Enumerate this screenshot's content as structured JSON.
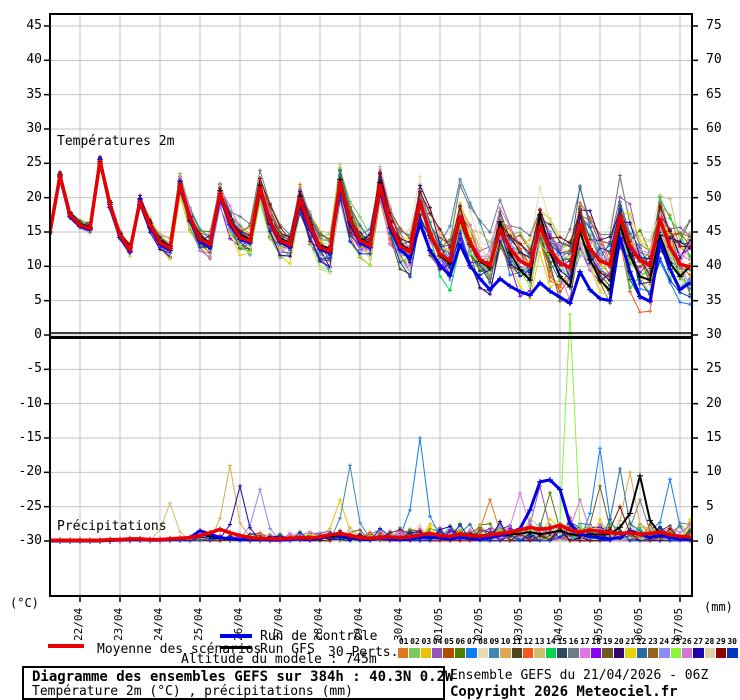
{
  "panel_labels": {
    "temp": "Températures 2m",
    "precip": "Précipitations"
  },
  "axes": {
    "left_unit": "(°C)",
    "right_unit": "(mm)",
    "left_ticks": [
      45,
      40,
      35,
      30,
      25,
      20,
      15,
      10,
      5,
      0,
      -5,
      -10,
      -15,
      -20,
      -25,
      -30
    ],
    "right_ticks": [
      75,
      70,
      65,
      60,
      55,
      50,
      45,
      40,
      35,
      30,
      25,
      20,
      15,
      10,
      5,
      0
    ],
    "dates": [
      "22/04",
      "23/04",
      "24/04",
      "25/04",
      "26/04",
      "27/04",
      "28/04",
      "29/04",
      "30/04",
      "01/05",
      "02/05",
      "03/05",
      "04/05",
      "05/05",
      "06/05",
      "07/05"
    ]
  },
  "legend": {
    "mean_label": "Moyenne des scénarios",
    "control_label": "Run de contrôle",
    "gfs_label": "Run GFS",
    "perts_label": "30 Perts.",
    "mean_color": "#e80000",
    "control_color": "#0000e8",
    "gfs_color": "#000000"
  },
  "altitude_note": "Altitude du modele : 745m",
  "title_box": {
    "line1": "Diagramme des ensembles GEFS sur 384h : 40.3N 0.2W",
    "line2": "Température 2m (°C) , précipitations (mm)"
  },
  "footer_right": {
    "line1": "Ensemble GEFS du 21/04/2026 - 06Z",
    "line2": "Copyright 2026 Meteociel.fr"
  },
  "members": {
    "numbers": [
      "01",
      "02",
      "03",
      "04",
      "05",
      "06",
      "07",
      "08",
      "09",
      "10",
      "11",
      "12",
      "13",
      "14",
      "15",
      "16",
      "17",
      "18",
      "19",
      "20",
      "21",
      "22",
      "23",
      "24",
      "25",
      "26",
      "27",
      "28",
      "29",
      "30"
    ],
    "colors": [
      "#e07820",
      "#7cc85c",
      "#e8c400",
      "#9355bc",
      "#b44a00",
      "#4e7e00",
      "#0f7cf4",
      "#e8dcb4",
      "#3c88b4",
      "#dca853",
      "#50461e",
      "#f4591c",
      "#cbc070",
      "#04d44c",
      "#2c4a5c",
      "#6c7c84",
      "#e474e4",
      "#8804f4",
      "#6c5c24",
      "#34086c",
      "#e4d404",
      "#2c6c9c",
      "#94641c",
      "#8c8cf4",
      "#8cf43c",
      "#d474d4",
      "#1c04ac",
      "#dcd0a4",
      "#8c0404",
      "#0434c4"
    ]
  },
  "chart_data": {
    "type": "line",
    "title": "Diagramme des ensembles GEFS sur 384h : 40.3N 0.2W",
    "run_start": "21/04/2026 06Z",
    "step_hours": 6,
    "n_points": 65,
    "grid": true,
    "legend_position": "bottom",
    "temp_axis": {
      "label": "(°C)",
      "tick_range": [
        -30,
        45
      ],
      "tick_step": 5
    },
    "precip_axis": {
      "label": "(mm)",
      "tick_range": [
        0,
        75
      ],
      "tick_step": 5,
      "zero_at_temp": -30
    },
    "x_tick_dates": [
      "22/04",
      "23/04",
      "24/04",
      "25/04",
      "26/04",
      "27/04",
      "28/04",
      "29/04",
      "30/04",
      "01/05",
      "02/05",
      "03/05",
      "04/05",
      "05/05",
      "06/05",
      "07/05"
    ],
    "series": {
      "mean_temp": [
        15.0,
        23.2,
        17.5,
        16.0,
        15.5,
        25.3,
        19.0,
        14.5,
        12.4,
        19.4,
        16.0,
        13.5,
        12.6,
        22.0,
        17.0,
        14.0,
        13.2,
        20.6,
        16.5,
        14.2,
        13.7,
        21.4,
        16.5,
        13.8,
        13.1,
        19.8,
        15.8,
        12.8,
        12.2,
        22.2,
        16.8,
        13.8,
        13.0,
        21.8,
        16.2,
        13.0,
        12.1,
        19.4,
        14.8,
        11.8,
        10.8,
        17.2,
        13.5,
        11.0,
        10.1,
        15.4,
        12.6,
        10.8,
        10.0,
        15.8,
        12.4,
        10.5,
        9.8,
        16.1,
        12.6,
        10.8,
        10.2,
        17.3,
        13.0,
        10.9,
        10.1,
        16.8,
        12.8,
        10.3,
        9.9
      ],
      "control_temp": [
        15.0,
        23.0,
        17.2,
        15.8,
        15.3,
        25.6,
        18.6,
        14.2,
        12.1,
        19.8,
        15.7,
        13.2,
        12.3,
        22.4,
        16.6,
        13.7,
        12.9,
        20.2,
        16.1,
        13.9,
        13.4,
        21.0,
        16.2,
        13.5,
        12.8,
        19.4,
        15.4,
        12.5,
        11.9,
        21.8,
        16.4,
        13.4,
        12.7,
        21.2,
        15.6,
        12.4,
        11.2,
        16.2,
        12.3,
        10.2,
        8.6,
        13.2,
        10.1,
        8.2,
        6.6,
        8.2,
        7.1,
        6.3,
        5.8,
        7.6,
        6.4,
        5.5,
        4.6,
        9.2,
        6.6,
        5.3,
        5.0,
        14.2,
        9.2,
        5.6,
        4.9,
        13.5,
        9.6,
        6.6,
        7.6
      ],
      "gfs_temp": [
        15.0,
        23.4,
        17.8,
        16.2,
        15.7,
        25.0,
        19.3,
        14.8,
        12.7,
        19.0,
        16.3,
        13.8,
        12.9,
        21.6,
        17.3,
        14.3,
        13.5,
        21.0,
        16.8,
        14.5,
        14.0,
        21.8,
        16.8,
        14.1,
        13.4,
        20.2,
        16.1,
        13.1,
        12.5,
        22.6,
        17.1,
        14.1,
        13.3,
        22.2,
        16.5,
        13.3,
        12.4,
        19.0,
        14.5,
        11.5,
        10.5,
        16.8,
        13.2,
        10.7,
        9.8,
        16.5,
        12.0,
        9.5,
        8.0,
        17.5,
        12.0,
        8.5,
        7.0,
        15.0,
        11.0,
        8.0,
        6.5,
        16.0,
        11.5,
        8.5,
        8.0,
        14.5,
        10.5,
        8.5,
        10.0
      ],
      "member_spread_temp": [
        0.3,
        0.3,
        0.3,
        0.4,
        0.5,
        0.5,
        0.6,
        0.7,
        0.8,
        0.8,
        0.9,
        1.0,
        1.0,
        1.1,
        1.2,
        1.3,
        1.3,
        1.4,
        1.5,
        1.5,
        1.6,
        1.6,
        1.7,
        1.7,
        1.8,
        1.8,
        1.9,
        1.9,
        2.0,
        2.0,
        2.1,
        2.1,
        2.2,
        2.2,
        2.3,
        2.4,
        2.5,
        2.5,
        2.6,
        2.7,
        2.8,
        2.8,
        2.9,
        3.0,
        3.1,
        3.1,
        3.2,
        3.3,
        3.4,
        3.4,
        3.5,
        3.6,
        3.7,
        3.7,
        3.8,
        3.9,
        4.0,
        4.0,
        4.1,
        4.1,
        4.2,
        4.2,
        4.3,
        4.3,
        4.4
      ],
      "mean_precip": [
        0.1,
        0.1,
        0.1,
        0.1,
        0.1,
        0.1,
        0.2,
        0.2,
        0.3,
        0.3,
        0.2,
        0.2,
        0.3,
        0.4,
        0.5,
        0.8,
        1.2,
        1.7,
        1.2,
        0.8,
        0.5,
        0.4,
        0.3,
        0.3,
        0.4,
        0.5,
        0.4,
        0.6,
        0.9,
        1.1,
        0.8,
        0.5,
        0.4,
        0.5,
        0.6,
        0.5,
        0.6,
        0.9,
        1.1,
        0.8,
        0.7,
        1.0,
        0.8,
        0.7,
        0.9,
        1.1,
        1.3,
        1.6,
        2.0,
        1.7,
        1.9,
        2.3,
        1.6,
        1.3,
        1.6,
        1.4,
        1.2,
        1.1,
        1.2,
        1.0,
        1.1,
        1.3,
        0.9,
        0.7,
        0.6
      ],
      "control_precip": [
        0,
        0,
        0,
        0,
        0,
        0,
        0.1,
        0.1,
        0.2,
        0.2,
        0.1,
        0.1,
        0.2,
        0.3,
        0.5,
        1.5,
        1.0,
        0.5,
        0.3,
        0.2,
        0.2,
        0.2,
        0.1,
        0.1,
        0.2,
        0.3,
        0.2,
        0.3,
        1.0,
        0.8,
        0.4,
        0.3,
        0.2,
        0.3,
        0.3,
        0.2,
        0.3,
        0.5,
        0.6,
        0.4,
        0.3,
        0.5,
        0.4,
        0.3,
        0.5,
        0.8,
        1.2,
        1.8,
        4.5,
        8.6,
        8.9,
        7.5,
        2.5,
        1.0,
        0.6,
        0.5,
        0.3,
        0.5,
        1.5,
        1.0,
        0.5,
        0.8,
        0.5,
        0.3,
        0.2
      ],
      "gfs_precip": [
        0,
        0,
        0,
        0,
        0,
        0,
        0,
        0.1,
        0.1,
        0.2,
        0.1,
        0.1,
        0.2,
        0.3,
        0.4,
        0.9,
        0.7,
        0.4,
        0.2,
        0.2,
        0.1,
        0.1,
        0.1,
        0.1,
        0.2,
        0.3,
        0.2,
        0.3,
        0.7,
        0.6,
        0.3,
        0.2,
        0.2,
        0.3,
        0.3,
        0.2,
        0.3,
        0.6,
        0.5,
        0.4,
        0.4,
        0.8,
        1.0,
        0.8,
        0.5,
        0.8,
        0.9,
        1.1,
        1.3,
        1.0,
        1.2,
        1.5,
        1.0,
        0.8,
        1.0,
        0.9,
        1.0,
        2.0,
        4.0,
        9.5,
        3.0,
        1.0,
        0.5,
        0.5,
        0.3
      ],
      "member_precip_spikes": [
        {
          "m": 13,
          "i": 12,
          "v": 5.5
        },
        {
          "m": 10,
          "i": 18,
          "v": 11
        },
        {
          "m": 27,
          "i": 19,
          "v": 8
        },
        {
          "m": 24,
          "i": 21,
          "v": 7.5
        },
        {
          "m": 3,
          "i": 29,
          "v": 6
        },
        {
          "m": 9,
          "i": 30,
          "v": 11
        },
        {
          "m": 7,
          "i": 37,
          "v": 15
        },
        {
          "m": 1,
          "i": 44,
          "v": 6
        },
        {
          "m": 17,
          "i": 47,
          "v": 7
        },
        {
          "m": 4,
          "i": 49,
          "v": 8
        },
        {
          "m": 6,
          "i": 50,
          "v": 7
        },
        {
          "m": 25,
          "i": 52,
          "v": 33
        },
        {
          "m": 26,
          "i": 53,
          "v": 6
        },
        {
          "m": 19,
          "i": 55,
          "v": 8
        },
        {
          "m": 7,
          "i": 55,
          "v": 13.5
        },
        {
          "m": 22,
          "i": 57,
          "v": 10.5
        },
        {
          "m": 29,
          "i": 57,
          "v": 5
        },
        {
          "m": 10,
          "i": 58,
          "v": 10
        },
        {
          "m": 16,
          "i": 59,
          "v": 6
        },
        {
          "m": 7,
          "i": 62,
          "v": 9
        }
      ]
    },
    "style": {
      "grid_color": "#c6c6c6",
      "zero_line_color": "#000000"
    }
  }
}
